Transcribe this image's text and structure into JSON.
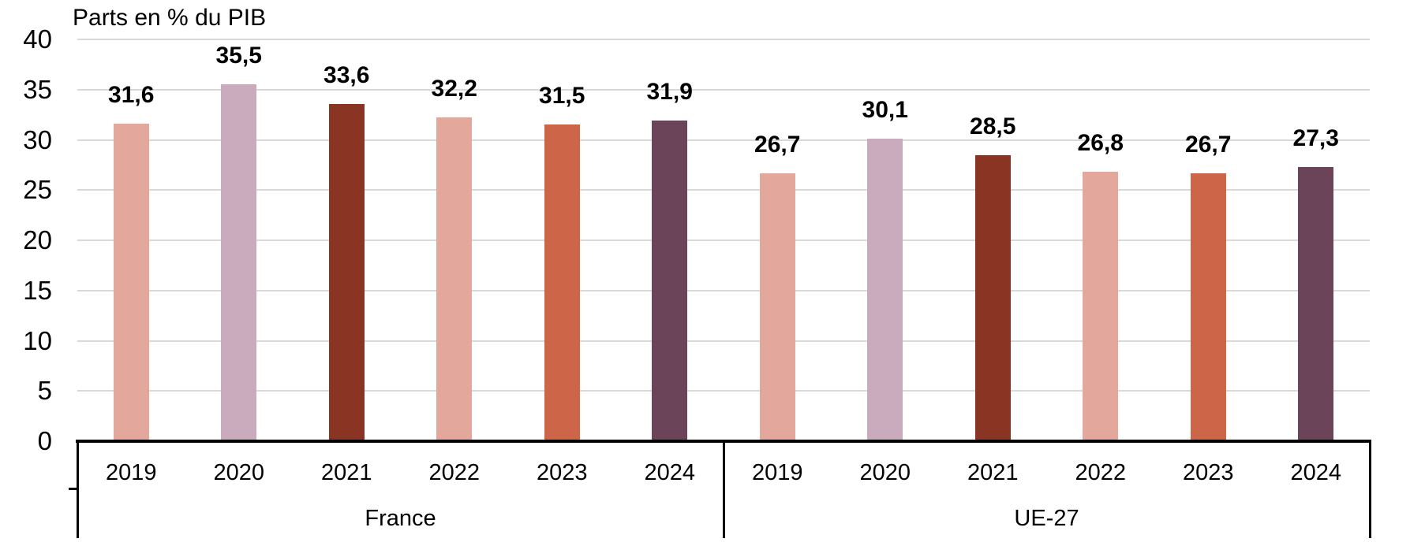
{
  "chart_data": {
    "type": "bar",
    "title": "Parts en % du PIB",
    "xlabel": "",
    "ylabel": "Parts en % du PIB",
    "ylim": [
      0,
      40
    ],
    "yticks": [
      0,
      5,
      10,
      15,
      20,
      25,
      30,
      35,
      40
    ],
    "grid": "horizontal",
    "legend_position": "none",
    "categories": [
      "2019",
      "2020",
      "2021",
      "2022",
      "2023",
      "2024"
    ],
    "groups": [
      {
        "label": "France",
        "values": [
          31.6,
          35.5,
          33.6,
          32.2,
          31.5,
          31.9
        ],
        "value_labels": [
          "31,6",
          "35,5",
          "33,6",
          "32,2",
          "31,5",
          "31,9"
        ]
      },
      {
        "label": "UE-27",
        "values": [
          26.7,
          30.1,
          28.5,
          26.8,
          26.7,
          27.3
        ],
        "value_labels": [
          "26,7",
          "30,1",
          "28,5",
          "26,8",
          "26,7",
          "27,3"
        ]
      }
    ],
    "bar_colors_by_year": {
      "2019": "#E3A89B",
      "2020": "#C9ABBD",
      "2021": "#8A3423",
      "2022": "#E3A89B",
      "2023": "#CD6549",
      "2024": "#6B4459"
    },
    "colors": {
      "gridline": "#D9D9D9",
      "axis": "#000000",
      "text": "#000000"
    }
  }
}
